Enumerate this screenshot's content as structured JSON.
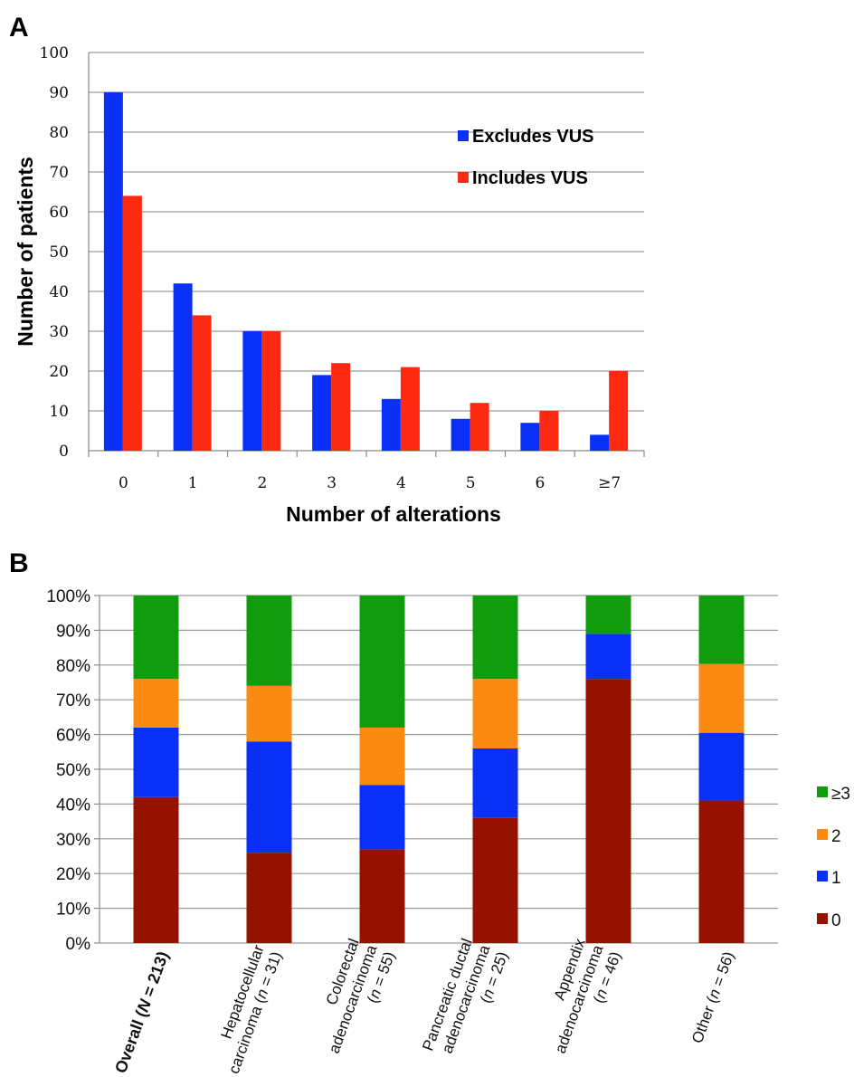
{
  "panels": {
    "a": "A",
    "b": "B"
  },
  "chart_data": [
    {
      "type": "bar",
      "panel": "A",
      "title": "",
      "xlabel": "Number of alterations",
      "ylabel": "Number of patients",
      "categories": [
        "0",
        "1",
        "2",
        "3",
        "4",
        "5",
        "6",
        "≥7"
      ],
      "ylim": [
        0,
        100
      ],
      "yticks": [
        "0",
        "10",
        "20",
        "30",
        "40",
        "50",
        "60",
        "70",
        "80",
        "90",
        "100"
      ],
      "grid": true,
      "legend_position": "top-right",
      "series": [
        {
          "name": "Excludes VUS",
          "color": "#0a30f5",
          "values": [
            90,
            42,
            30,
            19,
            13,
            8,
            7,
            4
          ]
        },
        {
          "name": "Includes VUS",
          "color": "#fb2a10",
          "values": [
            64,
            34,
            30,
            22,
            21,
            12,
            10,
            20
          ]
        }
      ]
    },
    {
      "type": "bar",
      "stacked": true,
      "panel": "B",
      "title": "",
      "xlabel": "",
      "ylabel": "",
      "categories": [
        {
          "parts": [
            {
              "t": "Overall (",
              "i": false
            },
            {
              "t": "N",
              "i": true
            },
            {
              "t": " = 213)",
              "i": false
            }
          ],
          "bold": true
        },
        {
          "lines": [
            [
              {
                "t": "Hepatocellular",
                "i": false
              }
            ],
            [
              {
                "t": "carcinoma (",
                "i": false
              },
              {
                "t": "n",
                "i": true
              },
              {
                "t": " = 31)",
                "i": false
              }
            ]
          ]
        },
        {
          "lines": [
            [
              {
                "t": "Colorectal",
                "i": false
              }
            ],
            [
              {
                "t": "adenocarcinoma",
                "i": false
              }
            ],
            [
              {
                "t": "(",
                "i": false
              },
              {
                "t": "n",
                "i": true
              },
              {
                "t": " = 55)",
                "i": false
              }
            ]
          ]
        },
        {
          "lines": [
            [
              {
                "t": "Pancreatic ductal",
                "i": false
              }
            ],
            [
              {
                "t": "adenocarcinoma",
                "i": false
              }
            ],
            [
              {
                "t": "(",
                "i": false
              },
              {
                "t": "n",
                "i": true
              },
              {
                "t": " = 25)",
                "i": false
              }
            ]
          ]
        },
        {
          "lines": [
            [
              {
                "t": "Appendix",
                "i": false
              }
            ],
            [
              {
                "t": "adenocarcinoma",
                "i": false
              }
            ],
            [
              {
                "t": "(",
                "i": false
              },
              {
                "t": "n",
                "i": true
              },
              {
                "t": " = 46)",
                "i": false
              }
            ]
          ]
        },
        {
          "parts": [
            {
              "t": "Other (",
              "i": false
            },
            {
              "t": "n",
              "i": true
            },
            {
              "t": " = 56)",
              "i": false
            }
          ]
        }
      ],
      "ylim": [
        0,
        100
      ],
      "yticks": [
        "0%",
        "10%",
        "20%",
        "30%",
        "40%",
        "50%",
        "60%",
        "70%",
        "80%",
        "90%",
        "100%"
      ],
      "grid": true,
      "legend_position": "right",
      "series": [
        {
          "name": "0",
          "color": "#951200",
          "values": [
            42,
            26,
            27,
            36,
            76,
            41
          ]
        },
        {
          "name": "1",
          "color": "#0a30f5",
          "values": [
            20,
            32,
            18.5,
            20,
            13,
            19.5
          ]
        },
        {
          "name": "2",
          "color": "#fb8a12",
          "values": [
            14,
            16,
            16.5,
            20,
            0,
            19.8
          ]
        },
        {
          "name": "≥3",
          "color": "#119c0e",
          "values": [
            24,
            26,
            38,
            24,
            11,
            19.7
          ]
        }
      ]
    }
  ]
}
